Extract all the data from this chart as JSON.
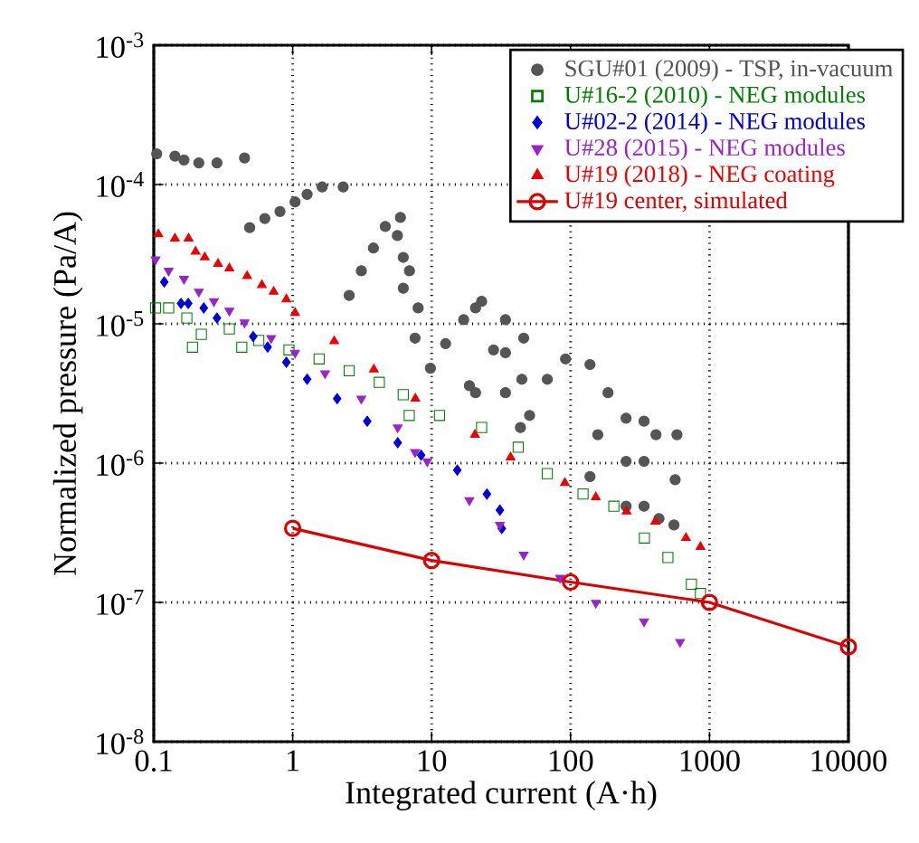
{
  "chart_data": {
    "type": "scatter",
    "xlabel": "Integrated current (A·h)",
    "ylabel": "Normalized pressure (Pa/A)",
    "log": "xy",
    "xlim": [
      0.1,
      10000
    ],
    "ylim": [
      1e-08,
      0.001
    ],
    "xticks": [
      0.1,
      1,
      10,
      100,
      1000,
      10000
    ],
    "yticks": [
      {
        "value": 1e-08,
        "label": "10$^{-8}$"
      },
      {
        "value": 1e-07,
        "label": "10$^{-7}$"
      },
      {
        "value": 1e-06,
        "label": "10$^{-6}$"
      },
      {
        "value": 1e-05,
        "label": "10$^{-5}$"
      },
      {
        "value": 0.0001,
        "label": "10$^{-4}$"
      },
      {
        "value": 0.001,
        "label": "10$^{-3}$"
      }
    ],
    "grid": true,
    "legend": "top right",
    "series": [
      {
        "name": "SGU#01 (2009) - TSP, in-vacuum",
        "color": "#555555",
        "marker": "circle",
        "x": [
          0.105,
          0.142,
          0.165,
          0.211,
          0.285,
          0.45,
          0.49,
          0.63,
          0.81,
          1.04,
          1.27,
          1.63,
          2.31,
          2.55,
          3.12,
          3.81,
          4.64,
          5.96,
          5.67,
          6.25,
          6.92,
          6.25,
          8.0,
          7.6,
          9.8,
          12.6,
          17,
          22.9,
          20.7,
          18.7,
          20.7,
          27.9,
          34,
          34,
          34,
          46,
          44.6,
          43.6,
          50.7,
          68,
          92,
          138,
          186,
          157,
          138,
          251,
          251,
          251,
          338,
          338,
          338,
          412,
          433,
          583,
          566,
          555
        ],
        "values": [
          0.000166,
          0.00016,
          0.00015,
          0.000143,
          0.000143,
          0.000155,
          4.9e-05,
          5.7e-05,
          6.4e-05,
          7.5e-05,
          8.5e-05,
          9.6e-05,
          9.6e-05,
          1.6e-05,
          2.4e-05,
          3.5e-05,
          5e-05,
          5.8e-05,
          4.3e-05,
          3e-05,
          2.4e-05,
          1.8e-05,
          1.3e-05,
          7.9e-06,
          4.8e-06,
          7.2e-06,
          1.07e-05,
          1.45e-05,
          1.3e-05,
          3.6e-06,
          3.2e-06,
          6.5e-06,
          1.07e-05,
          6.2e-06,
          3.2e-06,
          7.9e-06,
          4e-06,
          1.8e-06,
          2.2e-06,
          4e-06,
          5.6e-06,
          5.1e-06,
          3.2e-06,
          1.6e-06,
          8e-07,
          2.1e-06,
          1.03e-06,
          4.9e-07,
          2e-06,
          1.03e-06,
          4.9e-07,
          1.6e-06,
          4e-07,
          1.6e-06,
          7.6e-07,
          3.6e-07
        ]
      },
      {
        "name": "U#16-2 (2010) - NEG modules",
        "color": "#008000",
        "marker": "square",
        "x": [
          0.103,
          0.128,
          0.173,
          0.19,
          0.22,
          0.35,
          0.43,
          0.57,
          0.94,
          1.55,
          2.55,
          4.2,
          6.25,
          6.9,
          11.4,
          22.9,
          42,
          68,
          123,
          205,
          340,
          502,
          741,
          861
        ],
        "values": [
          1.3e-05,
          1.3e-05,
          1.1e-05,
          6.8e-06,
          8.4e-06,
          9.2e-06,
          6.8e-06,
          7.6e-06,
          6.5e-06,
          5.6e-06,
          4.6e-06,
          3.8e-06,
          3.1e-06,
          2.2e-06,
          2.2e-06,
          1.8e-06,
          1.3e-06,
          8.4e-07,
          6e-07,
          4.9e-07,
          2.9e-07,
          2.1e-07,
          1.35e-07,
          1.16e-07
        ]
      },
      {
        "name": "U#02-2 (2014) - NEG modules",
        "color": "#0000dd",
        "marker": "diamond",
        "x": [
          0.119,
          0.157,
          0.177,
          0.229,
          0.285,
          0.52,
          0.66,
          0.9,
          1.27,
          2.09,
          3.44,
          5.7,
          8.4,
          15.3,
          25,
          31,
          32
        ],
        "values": [
          2e-05,
          1.4e-05,
          1.4e-05,
          1.3e-05,
          1.1e-05,
          8.1e-06,
          6.8e-06,
          5.3e-06,
          4e-06,
          2.9e-06,
          2e-06,
          1.4e-06,
          1.14e-06,
          8.9e-07,
          6e-07,
          4.6e-07,
          3.4e-07
        ]
      },
      {
        "name": "U#28 (2015) - NEG modules",
        "color": "#9922cc",
        "marker": "triangle down",
        "x": [
          0.103,
          0.128,
          0.165,
          0.211,
          0.271,
          0.35,
          0.45,
          0.7,
          1.04,
          1.71,
          3.12,
          5.7,
          7.6,
          9.3,
          18.7,
          31,
          46,
          84,
          152,
          338,
          614
        ],
        "values": [
          2.9e-05,
          2.4e-05,
          2.1e-05,
          1.7e-05,
          1.45e-05,
          1.24e-05,
          1.02e-05,
          7.9e-06,
          6.2e-06,
          4.4e-06,
          2.9e-06,
          1.8e-06,
          1.2e-06,
          1.03e-06,
          5.4e-07,
          3.6e-07,
          2.2e-07,
          1.5e-07,
          9.9e-08,
          7.3e-08,
          5.2e-08
        ]
      },
      {
        "name": "U#19 (2018) - NEG coating",
        "color": "#ee0000",
        "marker": "triangle",
        "x": [
          0.108,
          0.142,
          0.178,
          0.2,
          0.233,
          0.29,
          0.35,
          0.47,
          0.6,
          0.73,
          0.9,
          1.04,
          1.99,
          3.84,
          7.64,
          20.5,
          37,
          91,
          152,
          253,
          407,
          678,
          861
        ],
        "values": [
          4.4e-05,
          4.1e-05,
          4.1e-05,
          3.3e-05,
          3e-05,
          2.7e-05,
          2.5e-05,
          2.2e-05,
          1.9e-05,
          1.7e-05,
          1.5e-05,
          1.2e-05,
          7.5e-06,
          4.7e-06,
          2.9e-06,
          1.6e-06,
          1.1e-06,
          7.2e-07,
          5.7e-07,
          4.5e-07,
          3.8e-07,
          2.9e-07,
          2.5e-07
        ]
      },
      {
        "name": "U#19 center, simulated",
        "color": "#dd0000",
        "type": "line",
        "marker": "circle",
        "line_style": "solid",
        "x": [
          1,
          10,
          100,
          1000,
          10000
        ],
        "values": [
          3.4e-07,
          2e-07,
          1.4e-07,
          1e-07,
          4.8e-08
        ]
      }
    ]
  }
}
